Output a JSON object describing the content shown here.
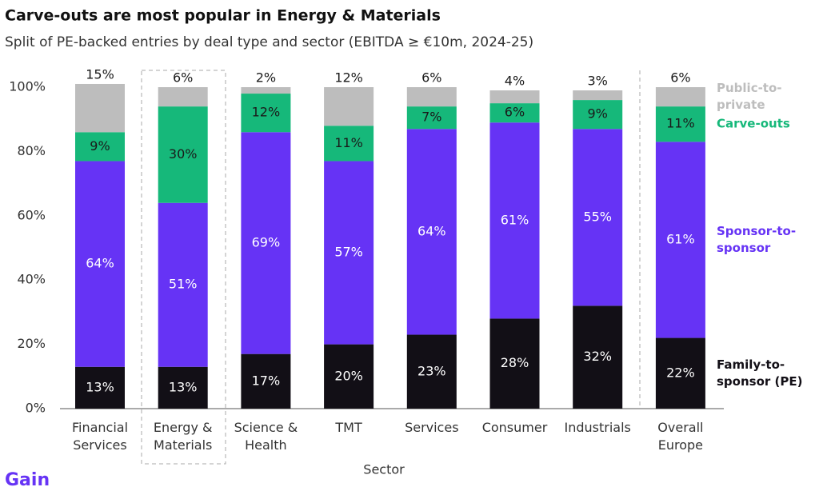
{
  "chart_data": {
    "type": "stacked_bar",
    "title": "Carve-outs are most popular in Energy & Materials",
    "subtitle": "Split of PE-backed entries by deal type and sector (EBITDA ≥ €10m, 2024-25)",
    "x_label": "Sector",
    "categories": [
      "Financial Services",
      "Energy & Materials",
      "Science & Health",
      "TMT",
      "Services",
      "Consumer",
      "Industrials",
      "Overall Europe"
    ],
    "series": [
      {
        "name": "Family-to-sponsor (PE)",
        "color": "#120f16",
        "label_color": "#ffffff",
        "values": [
          13,
          13,
          17,
          20,
          23,
          28,
          32,
          22
        ],
        "value_labels": [
          "13%",
          "13%",
          "17%",
          "20%",
          "23%",
          "28%",
          "32%",
          "22%"
        ]
      },
      {
        "name": "Sponsor-to-sponsor",
        "color": "#6633f5",
        "label_color": "#ffffff",
        "values": [
          64,
          51,
          69,
          57,
          64,
          61,
          55,
          61
        ],
        "value_labels": [
          "64%",
          "51%",
          "69%",
          "57%",
          "64%",
          "61%",
          "55%",
          "61%"
        ]
      },
      {
        "name": "Carve-outs",
        "color": "#16b87a",
        "label_color": "#1a1a1a",
        "values": [
          9,
          30,
          12,
          11,
          7,
          6,
          9,
          11
        ],
        "value_labels": [
          "9%",
          "30%",
          "12%",
          "11%",
          "7%",
          "6%",
          "9%",
          "11%"
        ]
      },
      {
        "name": "Public-to-private",
        "color": "#bdbdbd",
        "label_color": "#1a1a1a",
        "values": [
          15,
          6,
          2,
          12,
          6,
          4,
          3,
          6
        ],
        "value_labels": [
          "15%",
          "6%",
          "2%",
          "12%",
          "6%",
          "4%",
          "3%",
          "6%"
        ]
      }
    ],
    "ylim": [
      0,
      100
    ],
    "yticks": [
      {
        "value": 0,
        "label": "0%"
      },
      {
        "value": 20,
        "label": "20%"
      },
      {
        "value": 40,
        "label": "40%"
      },
      {
        "value": 60,
        "label": "60%"
      },
      {
        "value": 80,
        "label": "80%"
      },
      {
        "value": 100,
        "label": "100%"
      }
    ],
    "logo": "Gain"
  }
}
